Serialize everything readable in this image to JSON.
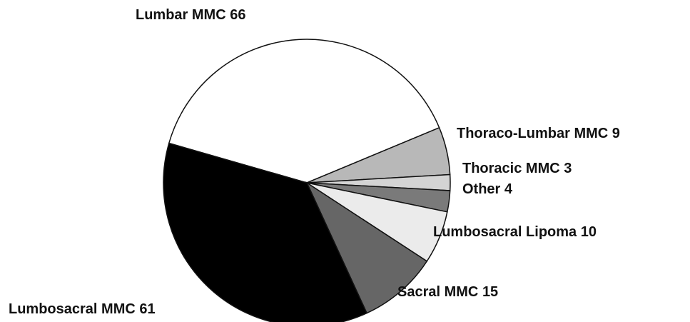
{
  "chart_data": {
    "type": "pie",
    "categories": [
      "Lumbar MMC",
      "Thoraco-Lumbar MMC",
      "Thoracic MMC",
      "Other",
      "Lumbosacral Lipoma",
      "Sacral MMC",
      "Lumbosacral MMC"
    ],
    "values": [
      66,
      9,
      3,
      4,
      10,
      15,
      61
    ],
    "colors": [
      "#ffffff",
      "#b8b8b8",
      "#d4d4d4",
      "#7a7a7a",
      "#ebebeb",
      "#666666",
      "#000000"
    ]
  }
}
